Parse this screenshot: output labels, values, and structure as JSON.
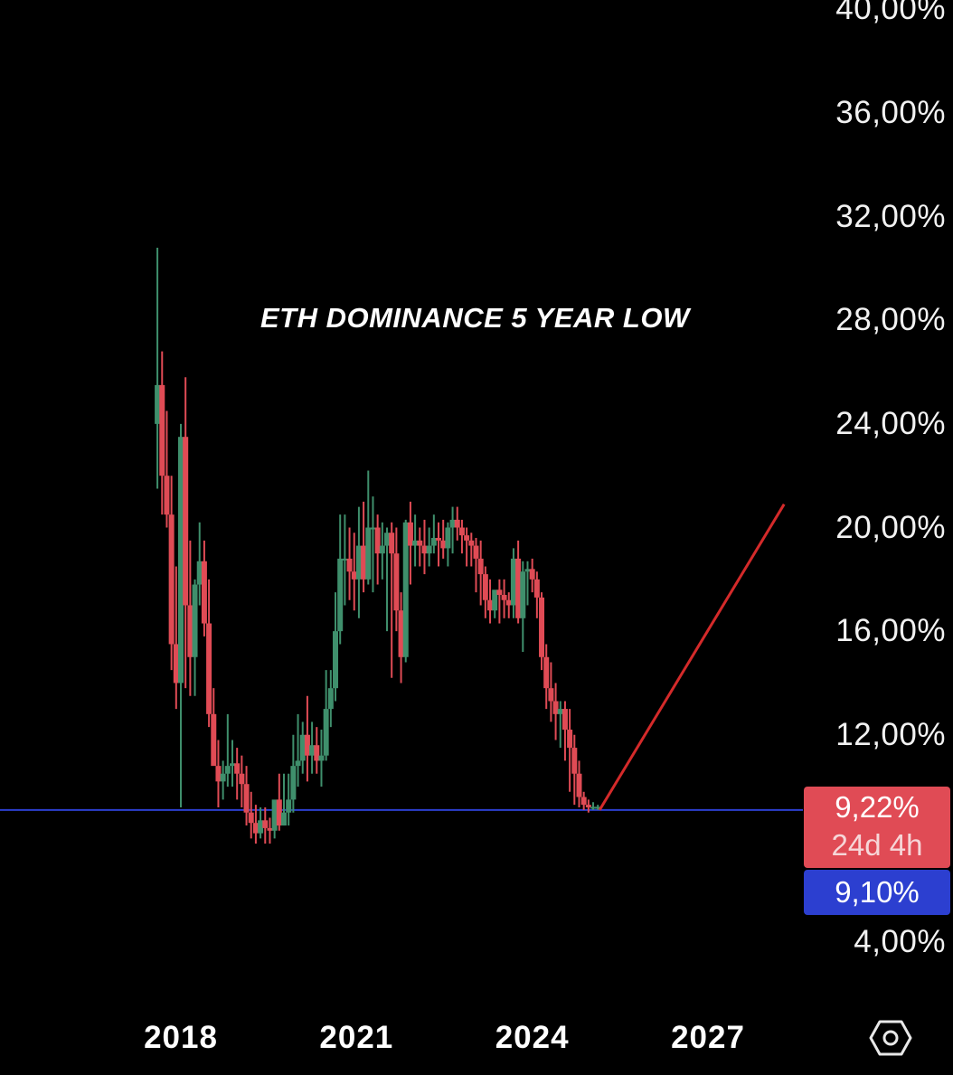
{
  "chart_data": {
    "type": "candlestick",
    "title": "",
    "annotation": "ETH DOMINANCE 5 YEAR LOW",
    "y_axis": {
      "ticks": [
        "4,00%",
        "12,00%",
        "16,00%",
        "20,00%",
        "24,00%",
        "28,00%",
        "32,00%",
        "36,00%",
        "40,00%"
      ],
      "tick_values": [
        4,
        12,
        16,
        20,
        24,
        28,
        32,
        36,
        40
      ],
      "range": [
        1.5,
        41
      ],
      "position": "right"
    },
    "x_axis": {
      "ticks": [
        "2018",
        "2021",
        "2024",
        "2027"
      ],
      "tick_values": [
        2018,
        2021,
        2024,
        2027
      ],
      "range": [
        2016.0,
        2029.2
      ]
    },
    "support_line": {
      "value": 9.1,
      "color": "#2c3fd0"
    },
    "projection_line": {
      "from": [
        2025.15,
        9.1
      ],
      "to": [
        2028.3,
        20.9
      ],
      "color": "#d42a2a"
    },
    "current_price": {
      "value": "9,22%",
      "countdown": "24d 4h",
      "color": "#e04b55"
    },
    "level_price": {
      "value": "9,10%",
      "color": "#2c3fd0"
    },
    "colors": {
      "up": "#3f8f6c",
      "down": "#e04b55",
      "background": "#000000"
    },
    "series": [
      {
        "x": [
          2017.6,
          2017.68,
          2017.76,
          2017.84,
          2017.92,
          2018.0,
          2018.08,
          2018.16,
          2018.24,
          2018.32,
          2018.4,
          2018.48,
          2018.56,
          2018.64,
          2018.72,
          2018.8,
          2018.88,
          2018.96,
          2019.04,
          2019.12,
          2019.2,
          2019.28,
          2019.36,
          2019.44,
          2019.52,
          2019.6,
          2019.68,
          2019.76,
          2019.84,
          2019.92,
          2020.0,
          2020.08,
          2020.16,
          2020.24,
          2020.32,
          2020.4,
          2020.48,
          2020.56,
          2020.64,
          2020.72,
          2020.8,
          2020.88,
          2020.96,
          2021.04,
          2021.12,
          2021.2,
          2021.28,
          2021.36,
          2021.44,
          2021.52,
          2021.6,
          2021.68,
          2021.76,
          2021.84,
          2021.92,
          2022.0,
          2022.08,
          2022.16,
          2022.24,
          2022.32,
          2022.4,
          2022.48,
          2022.56,
          2022.64,
          2022.72,
          2022.8,
          2022.88,
          2022.96,
          2023.04,
          2023.12,
          2023.2,
          2023.28,
          2023.36,
          2023.44,
          2023.52,
          2023.6,
          2023.68,
          2023.76,
          2023.84,
          2023.92,
          2024.0,
          2024.08,
          2024.16,
          2024.24,
          2024.32,
          2024.4,
          2024.48,
          2024.56,
          2024.64,
          2024.72,
          2024.8,
          2024.88,
          2024.96,
          2025.04,
          2025.12
        ],
        "open": [
          24.0,
          25.5,
          22.0,
          20.5,
          15.5,
          14.0,
          23.5,
          17.0,
          15.0,
          17.8,
          18.7,
          16.3,
          12.8,
          10.8,
          10.2,
          10.5,
          10.8,
          10.9,
          10.5,
          10.1,
          9.0,
          8.6,
          8.2,
          8.7,
          8.4,
          8.3,
          9.5,
          8.5,
          9.0,
          9.5,
          10.8,
          11.0,
          12.0,
          11.2,
          11.6,
          11.0,
          11.2,
          13.0,
          13.8,
          16.0,
          18.8,
          18.8,
          18.3,
          18.0,
          19.3,
          18.0,
          20.0,
          20.0,
          19.0,
          19.3,
          19.8,
          19.0,
          16.8,
          15.0,
          20.2,
          19.3,
          19.5,
          19.3,
          19.0,
          19.3,
          19.6,
          19.5,
          19.2,
          20.0,
          20.3,
          20.0,
          19.7,
          19.5,
          19.3,
          18.8,
          18.2,
          17.2,
          16.8,
          17.6,
          17.4,
          17.2,
          17.0,
          18.8,
          16.5,
          18.3,
          18.4,
          18.0,
          17.3,
          15.0,
          13.8,
          13.3,
          12.8,
          13.0,
          12.2,
          11.5,
          10.5,
          9.6,
          9.3,
          9.2,
          9.22
        ],
        "high": [
          30.8,
          26.8,
          24.5,
          22.0,
          18.5,
          24.0,
          25.8,
          19.5,
          18.0,
          20.2,
          19.5,
          18.0,
          13.8,
          11.8,
          11.0,
          12.8,
          11.8,
          11.5,
          11.2,
          10.8,
          9.8,
          9.3,
          9.2,
          9.2,
          8.8,
          9.3,
          10.5,
          10.5,
          10.5,
          12.0,
          12.8,
          12.5,
          13.5,
          12.5,
          12.3,
          12.2,
          14.5,
          14.5,
          17.5,
          20.5,
          20.5,
          20.0,
          19.8,
          20.8,
          21.0,
          22.2,
          21.2,
          20.5,
          20.2,
          20.0,
          20.2,
          20.0,
          17.5,
          20.3,
          21.0,
          20.5,
          20.0,
          20.3,
          20.0,
          20.5,
          20.2,
          20.3,
          20.2,
          20.8,
          20.8,
          20.3,
          20.0,
          19.8,
          19.6,
          19.5,
          18.5,
          18.0,
          17.5,
          18.0,
          18.0,
          17.5,
          19.2,
          19.5,
          18.7,
          18.7,
          18.8,
          18.3,
          17.5,
          15.5,
          14.8,
          14.0,
          13.3,
          13.3,
          13.0,
          12.0,
          11.0,
          9.8,
          9.5,
          9.4,
          9.3
        ],
        "low": [
          21.5,
          20.5,
          20.0,
          14.5,
          13.0,
          9.2,
          13.8,
          13.5,
          13.5,
          17.0,
          15.8,
          12.3,
          11.0,
          9.2,
          9.5,
          10.0,
          10.0,
          9.5,
          9.2,
          8.5,
          8.0,
          7.8,
          8.0,
          7.8,
          7.8,
          8.0,
          8.3,
          8.5,
          8.5,
          9.0,
          10.0,
          10.5,
          10.2,
          10.5,
          10.5,
          10.0,
          11.0,
          12.3,
          13.3,
          15.5,
          17.0,
          17.2,
          16.8,
          16.5,
          17.5,
          17.8,
          17.5,
          17.8,
          18.0,
          16.0,
          14.2,
          16.0,
          14.0,
          14.8,
          17.8,
          18.5,
          18.5,
          18.2,
          18.5,
          19.0,
          18.5,
          18.8,
          18.5,
          19.0,
          19.5,
          19.0,
          18.5,
          18.5,
          17.5,
          17.0,
          16.5,
          16.3,
          16.5,
          16.3,
          16.5,
          16.5,
          16.5,
          16.3,
          15.2,
          17.0,
          17.5,
          16.5,
          14.5,
          13.0,
          12.5,
          11.8,
          11.5,
          11.0,
          9.8,
          9.3,
          9.2,
          9.1,
          9.0,
          9.1,
          9.1
        ],
        "close": [
          25.5,
          22.0,
          20.5,
          15.5,
          14.0,
          23.5,
          17.0,
          15.0,
          17.8,
          18.7,
          16.3,
          12.8,
          10.8,
          10.2,
          10.5,
          10.8,
          10.9,
          10.5,
          10.1,
          9.0,
          8.6,
          8.2,
          8.7,
          8.4,
          8.3,
          9.5,
          8.5,
          9.0,
          9.5,
          10.8,
          11.0,
          12.0,
          11.2,
          11.6,
          11.0,
          11.2,
          13.0,
          13.8,
          16.0,
          18.8,
          18.8,
          18.3,
          18.0,
          19.3,
          18.0,
          20.0,
          20.0,
          19.0,
          19.3,
          19.8,
          19.0,
          16.8,
          15.0,
          20.2,
          19.3,
          19.5,
          19.3,
          19.0,
          19.3,
          19.6,
          19.5,
          19.2,
          20.0,
          20.3,
          20.0,
          19.7,
          19.5,
          19.3,
          18.8,
          18.2,
          17.2,
          16.8,
          17.6,
          17.4,
          17.2,
          17.0,
          18.8,
          16.5,
          18.3,
          18.4,
          18.0,
          17.3,
          15.0,
          13.8,
          13.3,
          12.8,
          13.0,
          12.2,
          11.5,
          10.5,
          9.6,
          9.3,
          9.2,
          9.22,
          9.22
        ]
      }
    ],
    "grid": false,
    "legend": "none"
  },
  "icons": {
    "settings": "hexagon-settings-icon"
  }
}
